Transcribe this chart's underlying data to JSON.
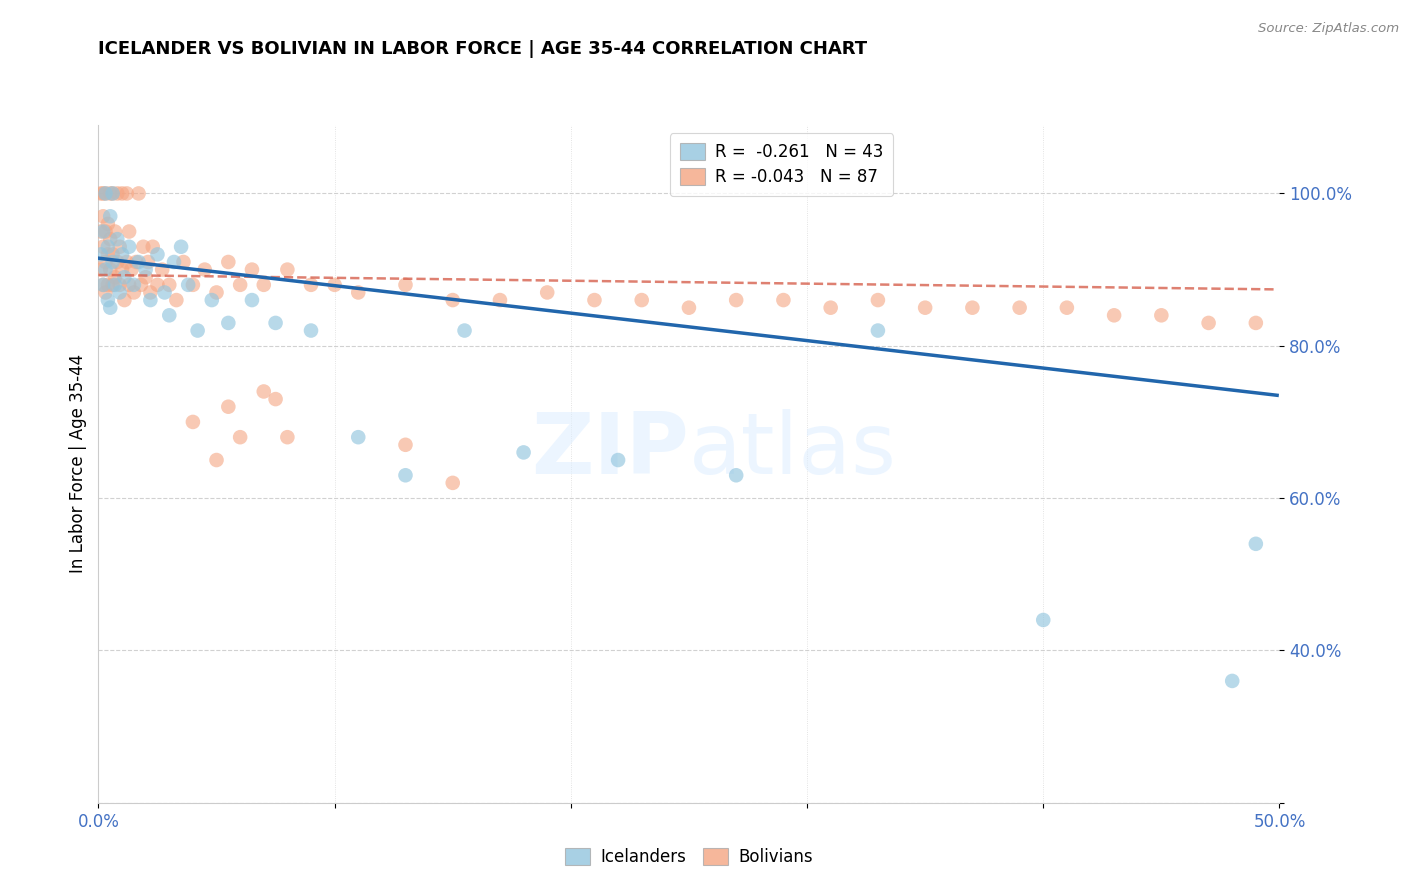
{
  "title": "ICELANDER VS BOLIVIAN IN LABOR FORCE | AGE 35-44 CORRELATION CHART",
  "source": "Source: ZipAtlas.com",
  "ylabel": "In Labor Force | Age 35-44",
  "blue_color": "#92c5de",
  "pink_color": "#f4a582",
  "blue_line_color": "#2166ac",
  "pink_line_color": "#d6604d",
  "legend_blue_R": "-0.261",
  "legend_blue_N": "43",
  "legend_pink_R": "-0.043",
  "legend_pink_N": "87",
  "grid_color": "#cccccc",
  "tick_color": "#4472c4",
  "xlim": [
    0.0,
    0.5
  ],
  "ylim": [
    0.2,
    1.09
  ],
  "blue_line_x0": 0.0,
  "blue_line_y0": 0.915,
  "blue_line_x1": 0.499,
  "blue_line_y1": 0.735,
  "pink_line_x0": 0.0,
  "pink_line_y0": 0.893,
  "pink_line_x1": 0.499,
  "pink_line_y1": 0.874,
  "blue_pts_x": [
    0.001,
    0.002,
    0.002,
    0.003,
    0.003,
    0.004,
    0.004,
    0.005,
    0.005,
    0.006,
    0.006,
    0.007,
    0.008,
    0.009,
    0.01,
    0.011,
    0.013,
    0.015,
    0.017,
    0.02,
    0.022,
    0.025,
    0.028,
    0.03,
    0.032,
    0.035,
    0.038,
    0.042,
    0.048,
    0.055,
    0.065,
    0.075,
    0.09,
    0.11,
    0.13,
    0.155,
    0.18,
    0.22,
    0.27,
    0.33,
    0.4,
    0.48,
    0.49
  ],
  "blue_pts_y": [
    0.92,
    0.88,
    0.95,
    0.9,
    1.0,
    0.93,
    0.86,
    0.97,
    0.85,
    0.91,
    1.0,
    0.88,
    0.94,
    0.87,
    0.92,
    0.89,
    0.93,
    0.88,
    0.91,
    0.9,
    0.86,
    0.92,
    0.87,
    0.84,
    0.91,
    0.93,
    0.88,
    0.82,
    0.86,
    0.83,
    0.86,
    0.83,
    0.82,
    0.68,
    0.63,
    0.82,
    0.66,
    0.65,
    0.63,
    0.82,
    0.44,
    0.36,
    0.54
  ],
  "pink_pts_x": [
    0.001,
    0.001,
    0.001,
    0.002,
    0.002,
    0.002,
    0.002,
    0.003,
    0.003,
    0.003,
    0.003,
    0.004,
    0.004,
    0.004,
    0.005,
    0.005,
    0.005,
    0.006,
    0.006,
    0.006,
    0.007,
    0.007,
    0.008,
    0.008,
    0.009,
    0.009,
    0.01,
    0.01,
    0.011,
    0.012,
    0.012,
    0.013,
    0.013,
    0.014,
    0.015,
    0.016,
    0.017,
    0.018,
    0.019,
    0.02,
    0.021,
    0.022,
    0.023,
    0.025,
    0.027,
    0.03,
    0.033,
    0.036,
    0.04,
    0.045,
    0.05,
    0.055,
    0.06,
    0.065,
    0.07,
    0.08,
    0.09,
    0.1,
    0.11,
    0.13,
    0.15,
    0.17,
    0.19,
    0.21,
    0.23,
    0.25,
    0.27,
    0.29,
    0.31,
    0.33,
    0.35,
    0.37,
    0.39,
    0.41,
    0.43,
    0.45,
    0.47,
    0.49,
    0.05,
    0.08,
    0.13,
    0.15,
    0.04,
    0.055,
    0.075,
    0.06,
    0.07
  ],
  "pink_pts_y": [
    0.9,
    0.95,
    1.0,
    0.88,
    0.93,
    0.97,
    1.0,
    0.91,
    0.95,
    0.87,
    1.0,
    0.92,
    0.96,
    0.88,
    0.9,
    0.94,
    1.0,
    0.88,
    0.92,
    1.0,
    0.89,
    0.95,
    0.91,
    1.0,
    0.88,
    0.93,
    0.9,
    1.0,
    0.86,
    0.91,
    1.0,
    0.88,
    0.95,
    0.9,
    0.87,
    0.91,
    1.0,
    0.88,
    0.93,
    0.89,
    0.91,
    0.87,
    0.93,
    0.88,
    0.9,
    0.88,
    0.86,
    0.91,
    0.88,
    0.9,
    0.87,
    0.91,
    0.88,
    0.9,
    0.88,
    0.9,
    0.88,
    0.88,
    0.87,
    0.88,
    0.86,
    0.86,
    0.87,
    0.86,
    0.86,
    0.85,
    0.86,
    0.86,
    0.85,
    0.86,
    0.85,
    0.85,
    0.85,
    0.85,
    0.84,
    0.84,
    0.83,
    0.83,
    0.65,
    0.68,
    0.67,
    0.62,
    0.7,
    0.72,
    0.73,
    0.68,
    0.74
  ]
}
